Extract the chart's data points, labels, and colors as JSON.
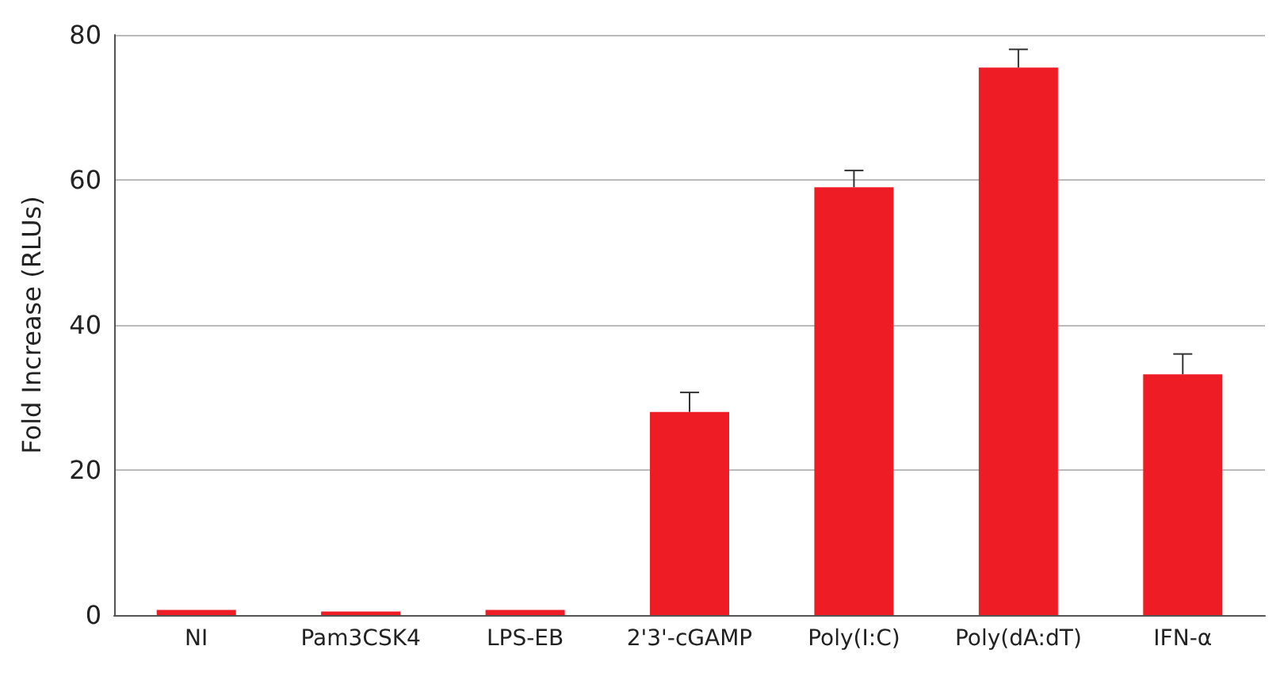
{
  "chart_data": {
    "type": "bar",
    "ylabel": "Fold Increase (RLUs)",
    "categories": [
      "NI",
      "Pam3CSK4",
      "LPS-EB",
      "2'3'-cGAMP",
      "Poly(I:C)",
      "Poly(dA:dT)",
      "IFN-α"
    ],
    "values": [
      0.7,
      0.5,
      0.7,
      28,
      59,
      75.5,
      33.2
    ],
    "errors": [
      null,
      null,
      null,
      [
        28,
        30.7
      ],
      [
        59,
        61.3
      ],
      [
        75.5,
        78
      ],
      [
        33.2,
        36
      ]
    ],
    "color": "#ee1c24",
    "ylim": [
      0,
      80
    ],
    "yticks": [
      0,
      20,
      40,
      60,
      80
    ],
    "grid": "y"
  }
}
